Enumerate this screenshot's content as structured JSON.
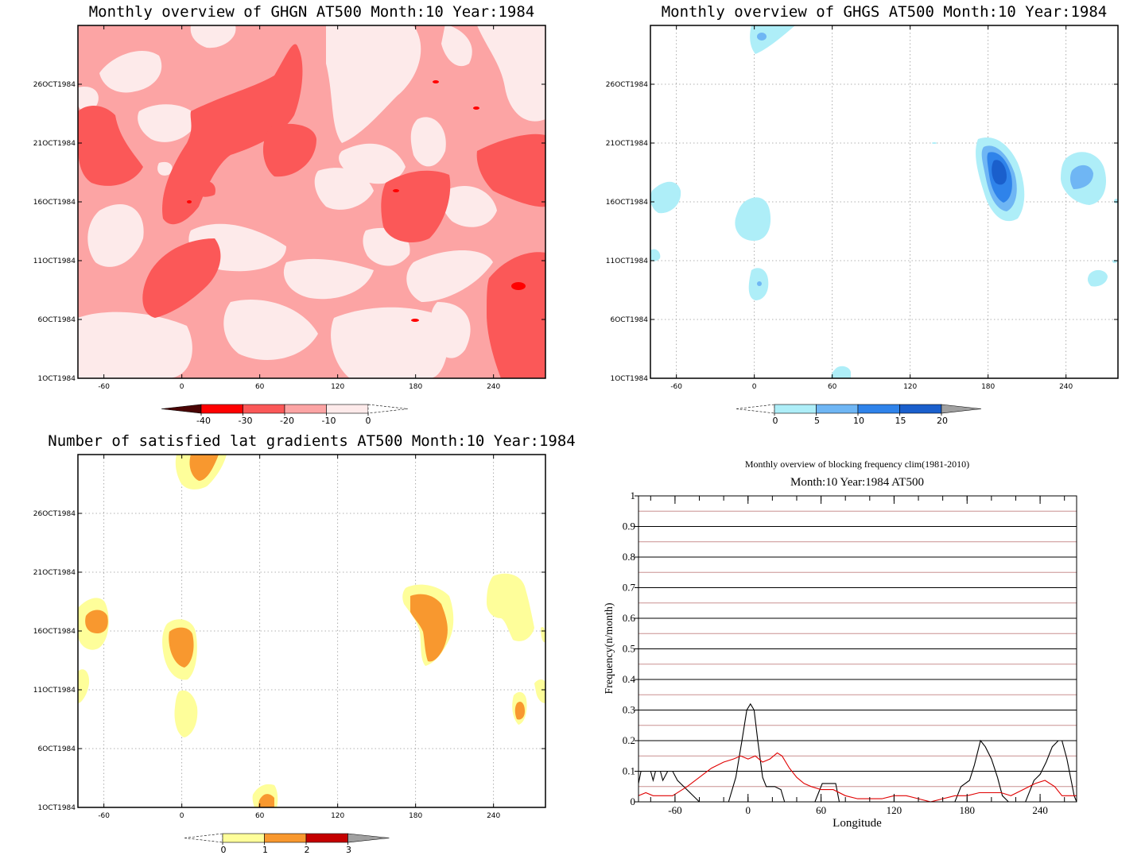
{
  "chart_data": [
    {
      "type": "heatmap",
      "id": "ghgn",
      "title": "Monthly overview of GHGN AT500 Month:10 Year:1984",
      "x_ticks": [
        "-60",
        "0",
        "60",
        "120",
        "180",
        "240"
      ],
      "y_ticks": [
        "1OCT1984",
        "6OCT1984",
        "11OCT1984",
        "16OCT1984",
        "21OCT1984",
        "26OCT1984"
      ],
      "xlim": [
        -80,
        280
      ],
      "ylim": [
        1,
        31
      ],
      "colorbar": {
        "labels": [
          "-40",
          "-30",
          "-20",
          "-10",
          "0"
        ],
        "colors": {
          "lt_-40": "#4a0404",
          "-40_-30": "#ff0000",
          "-30_-20": "#fb5858",
          "-20_-10": "#fca4a4",
          "-10_0": "#fdeaea"
        }
      },
      "background_color": "#fca4a4"
    },
    {
      "type": "heatmap",
      "id": "ghgs",
      "title": "Monthly overview of GHGS AT500 Month:10 Year:1984",
      "x_ticks": [
        "-60",
        "0",
        "60",
        "120",
        "180",
        "240"
      ],
      "y_ticks": [
        "1OCT1984",
        "6OCT1984",
        "11OCT1984",
        "16OCT1984",
        "21OCT1984",
        "26OCT1984"
      ],
      "xlim": [
        -80,
        280
      ],
      "ylim": [
        1,
        31
      ],
      "colorbar": {
        "labels": [
          "0",
          "5",
          "10",
          "15",
          "20"
        ],
        "colors": {
          "0_5": "#aeeef8",
          "5_10": "#6fb6f4",
          "10_15": "#2f83ea",
          "15_20": "#1a5fcc",
          "gt_20": "#a0a0a0"
        }
      }
    },
    {
      "type": "heatmap",
      "id": "lat-gradients",
      "title": "Number of satisfied lat gradients AT500 Month:10 Year:1984",
      "x_ticks": [
        "-60",
        "0",
        "60",
        "120",
        "180",
        "240"
      ],
      "y_ticks": [
        "1OCT1984",
        "6OCT1984",
        "11OCT1984",
        "16OCT1984",
        "21OCT1984",
        "26OCT1984"
      ],
      "xlim": [
        -80,
        280
      ],
      "ylim": [
        1,
        31
      ],
      "colorbar": {
        "labels": [
          "0",
          "1",
          "2",
          "3"
        ],
        "colors": {
          "0_1": "#fefe9a",
          "1_2": "#f8982f",
          "2_3": "#c40000",
          "gt_3": "#a0a0a0"
        }
      }
    },
    {
      "type": "line",
      "id": "blocking-frequency",
      "title": "Monthly overview of blocking frequency clim(1981-2010)",
      "subtitle": "Month:10 Year:1984  AT500",
      "xlabel": "Longitude",
      "ylabel": "Frequency(n/month)",
      "xlim": [
        -90,
        270
      ],
      "ylim": [
        0,
        1
      ],
      "x_ticks": [
        "-60",
        "0",
        "60",
        "120",
        "180",
        "240"
      ],
      "y_ticks": [
        "0",
        "0.1",
        "0.2",
        "0.3",
        "0.4",
        "0.5",
        "0.6",
        "0.7",
        "0.8",
        "0.9",
        "1"
      ],
      "series": [
        {
          "color": "#000000",
          "points": [
            [
              -90,
              0.06
            ],
            [
              -88,
              0.1
            ],
            [
              -80,
              0.1
            ],
            [
              -78,
              0.07
            ],
            [
              -76,
              0.1
            ],
            [
              -72,
              0.1
            ],
            [
              -70,
              0.07
            ],
            [
              -66,
              0.1
            ],
            [
              -62,
              0.1
            ],
            [
              -58,
              0.07
            ],
            [
              -40,
              0.0
            ],
            [
              -16,
              0.0
            ],
            [
              -10,
              0.08
            ],
            [
              -5,
              0.2
            ],
            [
              -1,
              0.3
            ],
            [
              2,
              0.32
            ],
            [
              5,
              0.3
            ],
            [
              8,
              0.2
            ],
            [
              12,
              0.08
            ],
            [
              15,
              0.05
            ],
            [
              22,
              0.05
            ],
            [
              27,
              0.04
            ],
            [
              30,
              0.0
            ],
            [
              55,
              0.0
            ],
            [
              58,
              0.03
            ],
            [
              61,
              0.06
            ],
            [
              72,
              0.06
            ],
            [
              75,
              0.0
            ],
            [
              170,
              0.0
            ],
            [
              175,
              0.05
            ],
            [
              182,
              0.07
            ],
            [
              186,
              0.12
            ],
            [
              191,
              0.2
            ],
            [
              195,
              0.18
            ],
            [
              200,
              0.14
            ],
            [
              205,
              0.08
            ],
            [
              209,
              0.02
            ],
            [
              214,
              0.0
            ],
            [
              228,
              0.0
            ],
            [
              235,
              0.07
            ],
            [
              240,
              0.09
            ],
            [
              245,
              0.13
            ],
            [
              250,
              0.18
            ],
            [
              255,
              0.2
            ],
            [
              258,
              0.2
            ],
            [
              262,
              0.14
            ],
            [
              266,
              0.06
            ],
            [
              268,
              0.02
            ],
            [
              270,
              0.0
            ]
          ]
        },
        {
          "color": "#e00000",
          "points": [
            [
              -90,
              0.02
            ],
            [
              -84,
              0.03
            ],
            [
              -78,
              0.02
            ],
            [
              -70,
              0.02
            ],
            [
              -62,
              0.02
            ],
            [
              -50,
              0.05
            ],
            [
              -40,
              0.08
            ],
            [
              -30,
              0.11
            ],
            [
              -20,
              0.13
            ],
            [
              -12,
              0.14
            ],
            [
              -6,
              0.15
            ],
            [
              0,
              0.14
            ],
            [
              6,
              0.15
            ],
            [
              12,
              0.13
            ],
            [
              18,
              0.14
            ],
            [
              24,
              0.16
            ],
            [
              28,
              0.15
            ],
            [
              34,
              0.11
            ],
            [
              40,
              0.08
            ],
            [
              46,
              0.06
            ],
            [
              52,
              0.05
            ],
            [
              60,
              0.04
            ],
            [
              70,
              0.04
            ],
            [
              80,
              0.02
            ],
            [
              90,
              0.01
            ],
            [
              110,
              0.01
            ],
            [
              120,
              0.02
            ],
            [
              130,
              0.02
            ],
            [
              140,
              0.01
            ],
            [
              150,
              0.0
            ],
            [
              160,
              0.01
            ],
            [
              170,
              0.02
            ],
            [
              180,
              0.02
            ],
            [
              190,
              0.03
            ],
            [
              200,
              0.03
            ],
            [
              208,
              0.03
            ],
            [
              216,
              0.02
            ],
            [
              226,
              0.04
            ],
            [
              236,
              0.06
            ],
            [
              244,
              0.07
            ],
            [
              252,
              0.05
            ],
            [
              258,
              0.02
            ],
            [
              264,
              0.02
            ],
            [
              270,
              0.02
            ]
          ]
        }
      ],
      "reference_lines": {
        "black_at": [
          0.1,
          0.2,
          0.3,
          0.4,
          0.5,
          0.6,
          0.7,
          0.8,
          0.9
        ],
        "red_at": [
          0.05,
          0.15,
          0.25,
          0.35,
          0.45,
          0.55,
          0.65,
          0.75,
          0.85,
          0.95
        ]
      }
    }
  ]
}
